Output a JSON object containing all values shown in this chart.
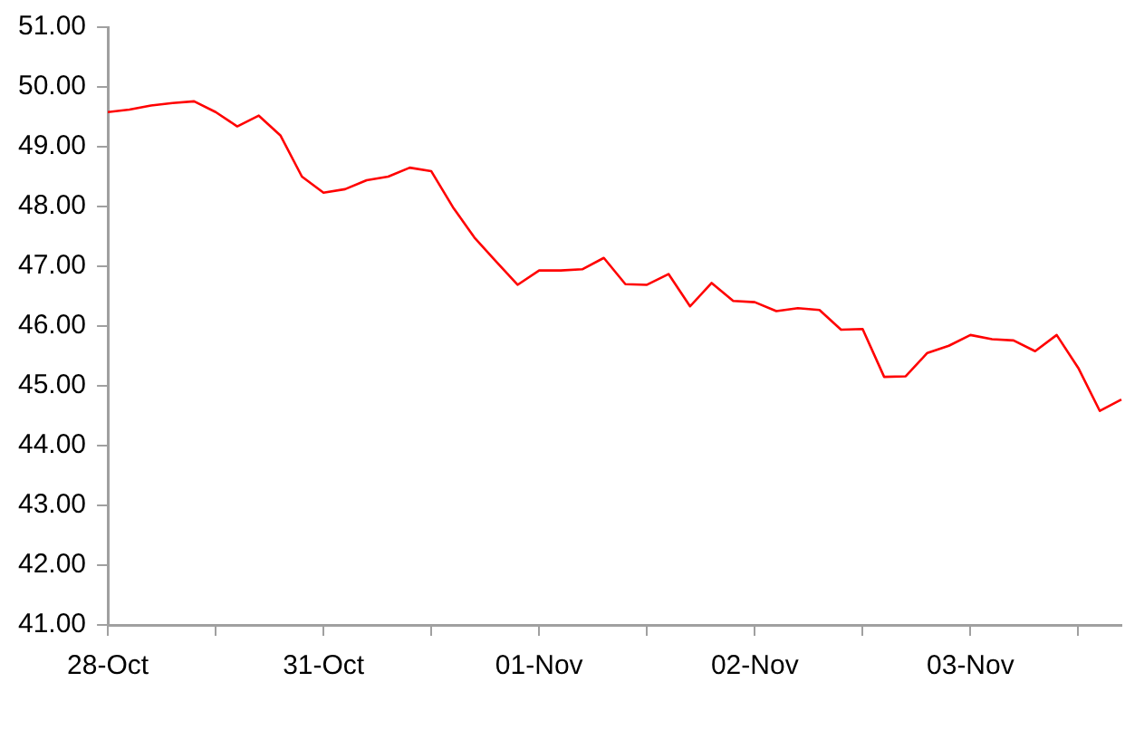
{
  "chart_data": {
    "type": "line",
    "categories": [
      "28-Oct",
      null,
      null,
      null,
      null,
      null,
      null,
      null,
      null,
      null,
      "31-Oct",
      null,
      null,
      null,
      null,
      null,
      null,
      null,
      null,
      null,
      "01-Nov",
      null,
      null,
      null,
      null,
      null,
      null,
      null,
      null,
      null,
      "02-Nov",
      null,
      null,
      null,
      null,
      null,
      null,
      null,
      null,
      null,
      "03-Nov",
      null,
      null,
      null,
      null,
      null,
      null,
      null
    ],
    "series": [
      {
        "color": "#ff0000",
        "values": [
          49.58,
          49.62,
          49.69,
          49.73,
          49.76,
          49.58,
          49.34,
          49.52,
          49.19,
          48.5,
          48.23,
          48.29,
          48.44,
          48.5,
          48.65,
          48.59,
          47.99,
          47.48,
          47.08,
          46.69,
          46.93,
          46.93,
          46.95,
          47.14,
          46.7,
          46.69,
          46.87,
          46.33,
          46.72,
          46.42,
          46.4,
          46.25,
          46.3,
          46.27,
          45.94,
          45.95,
          45.15,
          45.16,
          45.55,
          45.67,
          45.85,
          45.78,
          45.76,
          45.58,
          45.85,
          45.3,
          44.58,
          44.77
        ]
      }
    ],
    "ylim": [
      41,
      51
    ],
    "yticks": [
      {
        "value": 41,
        "label": "41.00"
      },
      {
        "value": 42,
        "label": "42.00"
      },
      {
        "value": 43,
        "label": "43.00"
      },
      {
        "value": 44,
        "label": "44.00"
      },
      {
        "value": 45,
        "label": "45.00"
      },
      {
        "value": 46,
        "label": "46.00"
      },
      {
        "value": 47,
        "label": "47.00"
      },
      {
        "value": 48,
        "label": "48.00"
      },
      {
        "value": 49,
        "label": "49.00"
      },
      {
        "value": 50,
        "label": "50.00"
      },
      {
        "value": 51,
        "label": "51.00"
      }
    ],
    "grid": false,
    "legend": false,
    "marker": "none",
    "line_style": "solid"
  }
}
